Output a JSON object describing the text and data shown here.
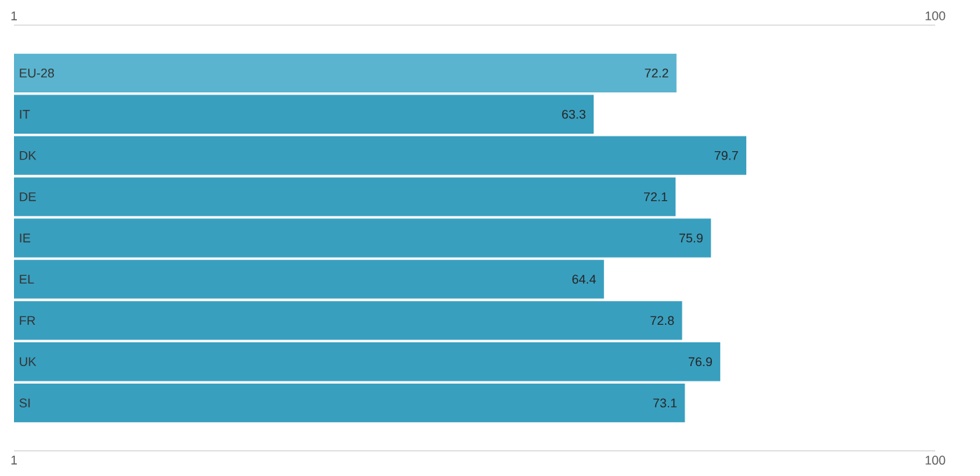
{
  "chart_data": {
    "type": "bar",
    "orientation": "horizontal",
    "categories": [
      "EU-28",
      "IT",
      "DK",
      "DE",
      "IE",
      "EL",
      "FR",
      "UK",
      "SI"
    ],
    "values": [
      72.2,
      63.3,
      79.7,
      72.1,
      75.9,
      64.4,
      72.8,
      76.9,
      73.1
    ],
    "colors": [
      "#5ab4cf",
      "#399fbf",
      "#399fbf",
      "#399fbf",
      "#399fbf",
      "#399fbf",
      "#399fbf",
      "#399fbf",
      "#399fbf"
    ],
    "xlim": [
      1,
      100
    ],
    "xticks": [
      1,
      100
    ],
    "x2lim": [
      1,
      100
    ],
    "x2ticks": [
      1,
      100
    ],
    "data_labels": true
  }
}
